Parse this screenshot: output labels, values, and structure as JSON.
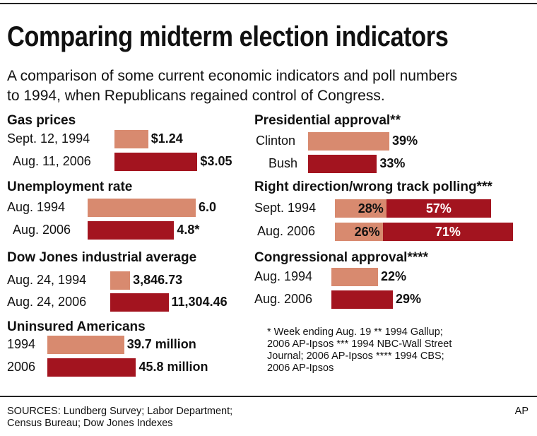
{
  "header": {
    "title": "Comparing midterm election indicators",
    "subtitle_lines": [
      "A comparison of some current economic indicators and poll numbers",
      "to 1994, when Republicans regained control of Congress."
    ]
  },
  "colors": {
    "y1994": "#d88a6f",
    "y2006": "#a3141f"
  },
  "chart_data": [
    {
      "type": "bar",
      "title": "Gas prices",
      "categories": [
        "Sept. 12, 1994",
        "Aug. 11, 2006"
      ],
      "values": [
        1.24,
        3.05
      ],
      "labels": [
        "$1.24",
        "$3.05"
      ]
    },
    {
      "type": "bar",
      "title": "Unemployment rate",
      "categories": [
        "Aug. 1994",
        "Aug. 2006"
      ],
      "values": [
        6.0,
        4.8
      ],
      "labels": [
        "6.0",
        "4.8*"
      ]
    },
    {
      "type": "bar",
      "title": "Dow Jones industrial average",
      "categories": [
        "Aug. 24, 1994",
        "Aug. 24, 2006"
      ],
      "values": [
        3846.73,
        11304.46
      ],
      "labels": [
        "3,846.73",
        "11,304.46"
      ]
    },
    {
      "type": "bar",
      "title": "Uninsured Americans",
      "categories": [
        "1994",
        "2006"
      ],
      "values": [
        39.7,
        45.8
      ],
      "labels": [
        "39.7 million",
        "45.8 million"
      ]
    },
    {
      "type": "bar",
      "title": "Presidential approval**",
      "categories": [
        "Clinton",
        "Bush"
      ],
      "values": [
        39,
        33
      ],
      "labels": [
        "39%",
        "33%"
      ]
    },
    {
      "type": "bar",
      "title": "Right direction/wrong track polling***",
      "stacked": true,
      "categories": [
        "Sept. 1994",
        "Aug. 2006"
      ],
      "series": [
        {
          "values": [
            28,
            26
          ],
          "labels": [
            "28%",
            "26%"
          ]
        },
        {
          "values": [
            57,
            71
          ],
          "labels": [
            "57%",
            "71%"
          ]
        }
      ]
    },
    {
      "type": "bar",
      "title": "Congressional approval****",
      "categories": [
        "Aug. 1994",
        "Aug. 2006"
      ],
      "values": [
        22,
        29
      ],
      "labels": [
        "22%",
        "29%"
      ]
    }
  ],
  "notes_lines": [
    "* Week ending Aug. 19 ** 1994 Gallup;",
    "2006 AP-Ipsos *** 1994 NBC-Wall Street",
    "Journal; 2006 AP-Ipsos **** 1994 CBS;",
    "2006 AP-Ipsos"
  ],
  "sources_lines": [
    "SOURCES: Lundberg Survey; Labor Department;",
    "Census Bureau; Dow Jones Indexes"
  ],
  "credit": "AP"
}
